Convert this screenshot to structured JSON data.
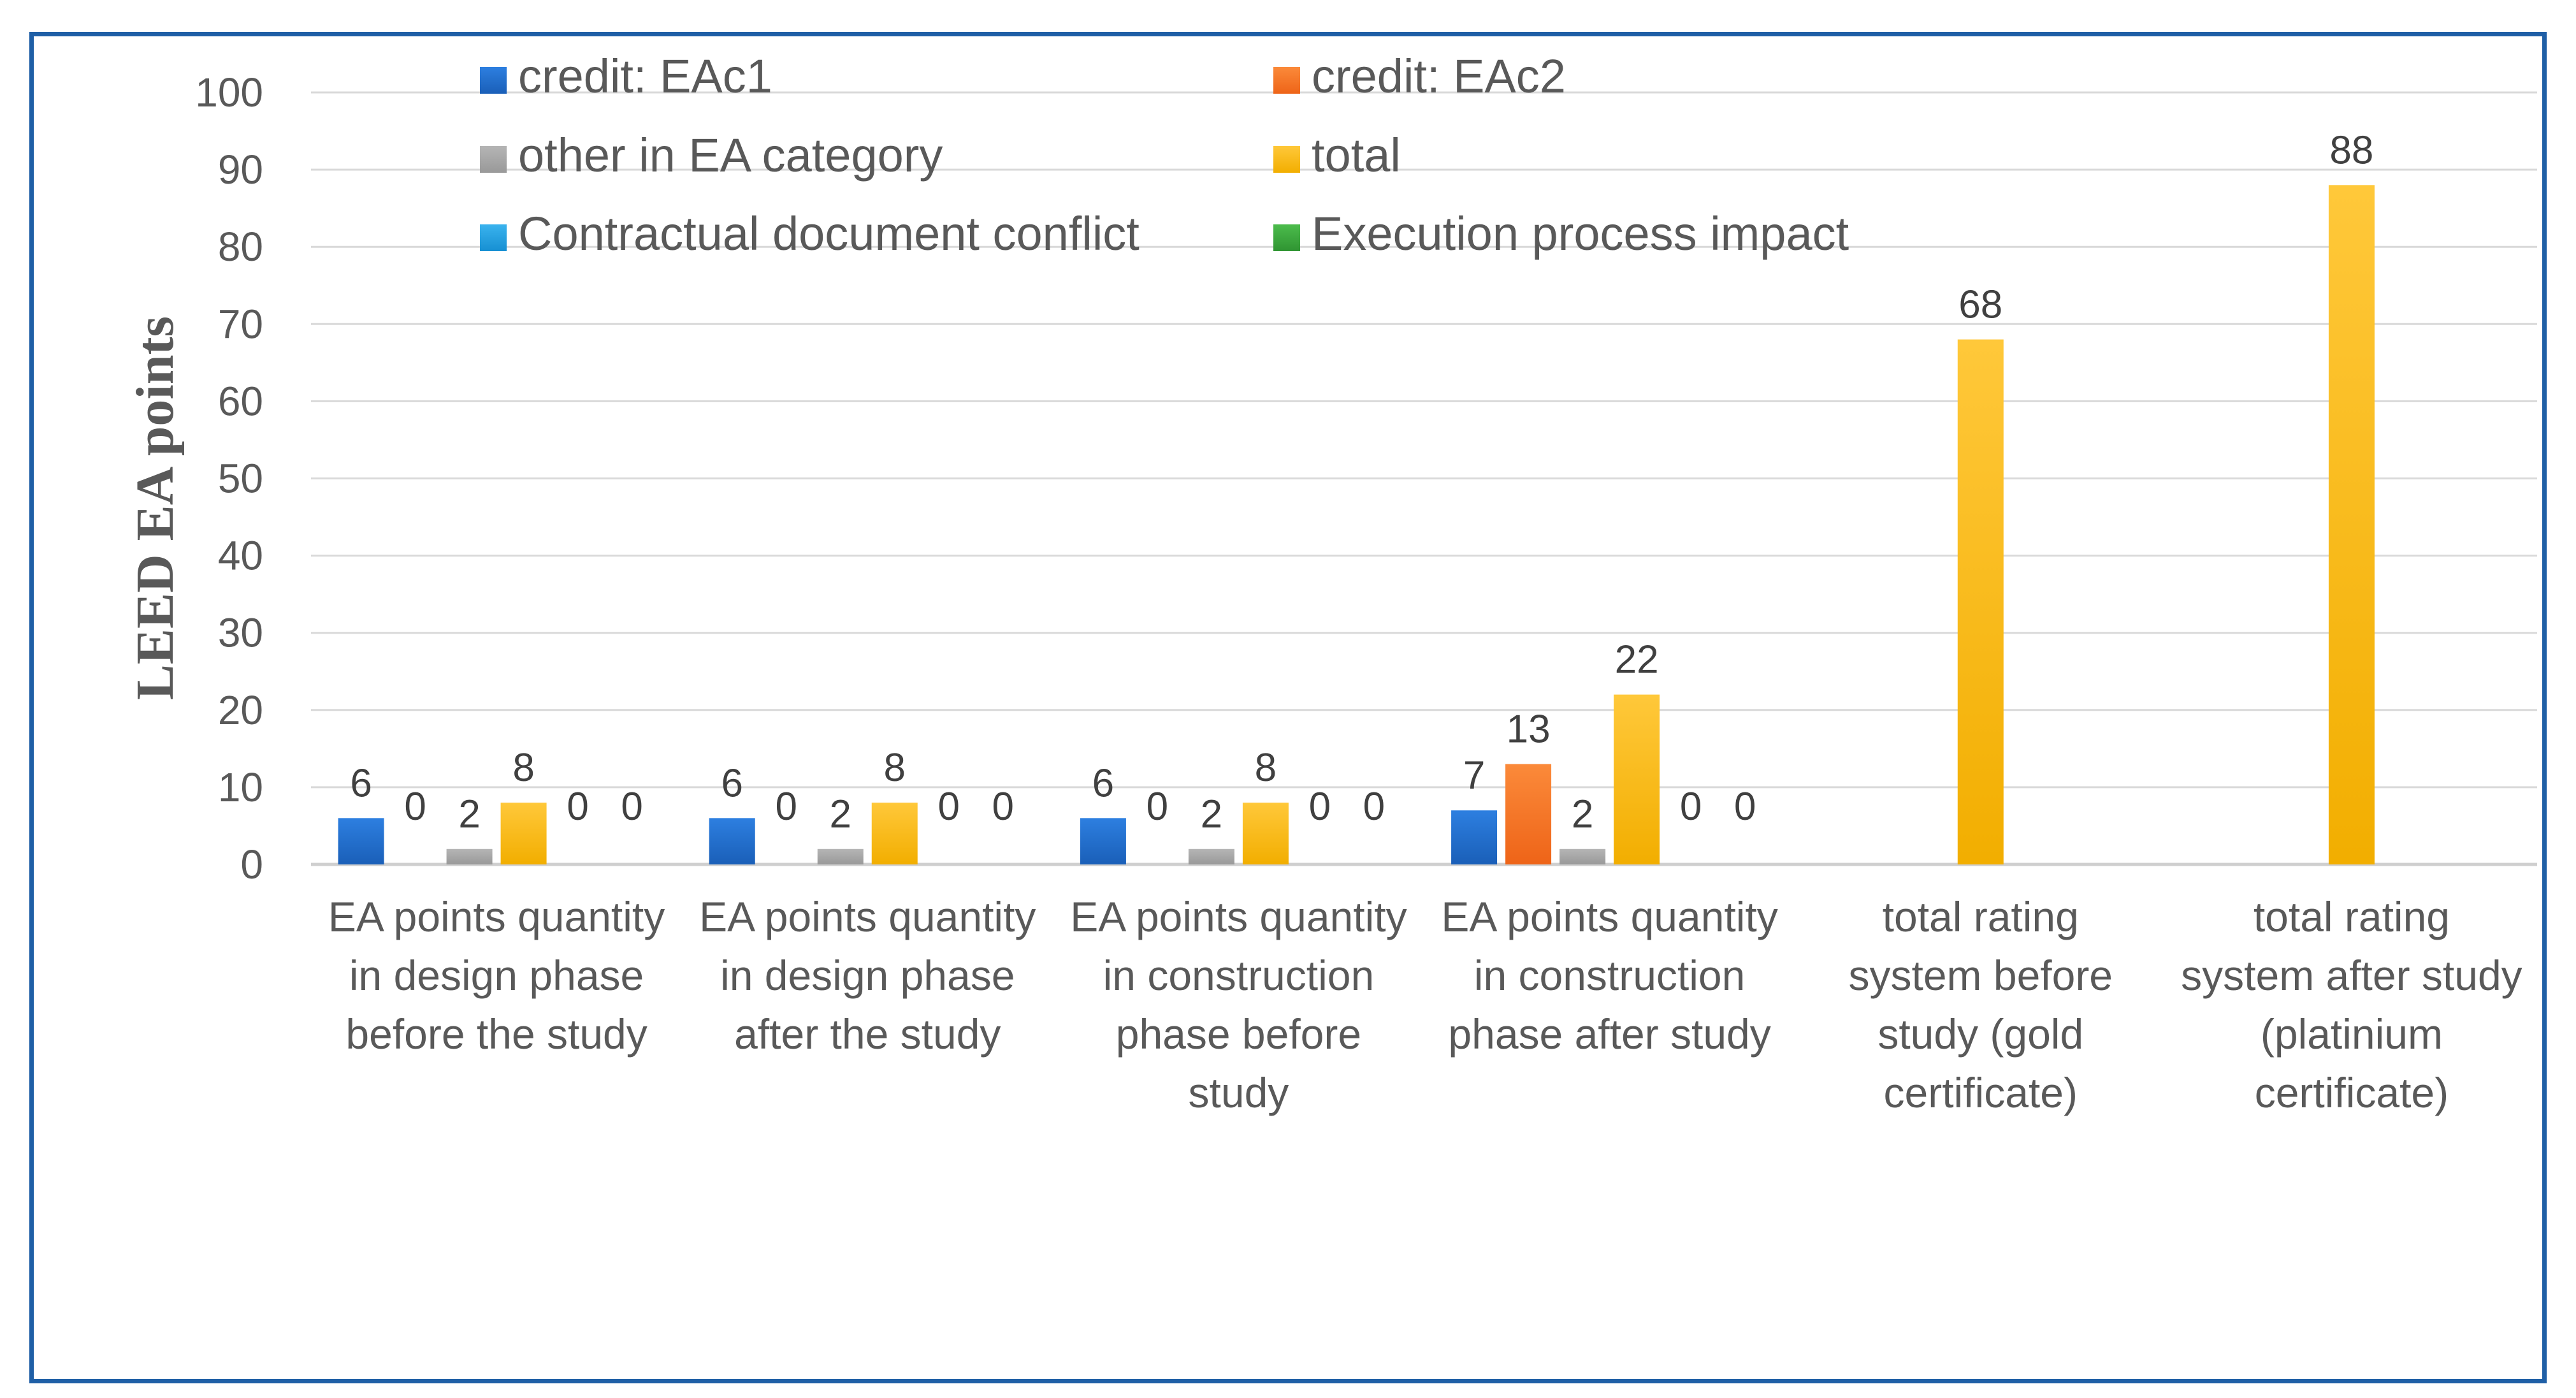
{
  "chart_data": {
    "type": "bar",
    "title": "",
    "xlabel": "",
    "ylabel": "LEED EA points",
    "ylim": [
      0,
      100
    ],
    "yticks": [
      "0",
      "10",
      "20",
      "30",
      "40",
      "50",
      "60",
      "70",
      "80",
      "90",
      "100"
    ],
    "grid": true,
    "legend_position": "top",
    "categories": [
      [
        "EA points quantity",
        "in design phase",
        "before the study"
      ],
      [
        "EA points quantity",
        "in design phase",
        "after  the study"
      ],
      [
        "EA points quantity",
        "in construction",
        "phase before",
        "study"
      ],
      [
        "EA points quantity",
        "in construction",
        "phase after study"
      ],
      [
        "total rating",
        "system before",
        "study (gold",
        "certificate)"
      ],
      [
        "total rating",
        "system after study",
        "(platinium",
        "certificate)"
      ]
    ],
    "series": [
      {
        "name": "credit: EAc1",
        "color": "#1f6fd1",
        "values": [
          6,
          6,
          6,
          7,
          null,
          null
        ],
        "labels": [
          "6",
          "6",
          "6",
          "7",
          "",
          ""
        ]
      },
      {
        "name": "credit: EAc2",
        "color": "#f4731f",
        "values": [
          0,
          0,
          0,
          13,
          null,
          null
        ],
        "labels": [
          "0",
          "0",
          "0",
          "13",
          "",
          ""
        ]
      },
      {
        "name": "other in EA category",
        "color": "#a5a5a5",
        "values": [
          2,
          2,
          2,
          2,
          null,
          null
        ],
        "labels": [
          "2",
          "2",
          "2",
          "2",
          "",
          ""
        ]
      },
      {
        "name": "total",
        "color": "#ffc000",
        "values": [
          8,
          8,
          8,
          22,
          68,
          88
        ],
        "labels": [
          "8",
          "8",
          "8",
          "22",
          "68",
          "88"
        ]
      },
      {
        "name": "Contractual document conflict",
        "color": "#1f9fe0",
        "values": [
          0,
          0,
          0,
          0,
          null,
          null
        ],
        "labels": [
          "0",
          "0",
          "0",
          "0",
          "",
          ""
        ]
      },
      {
        "name": "Execution process impact",
        "color": "#3aa63a",
        "values": [
          0,
          0,
          0,
          0,
          null,
          null
        ],
        "labels": [
          "0",
          "0",
          "0",
          "0",
          "",
          ""
        ]
      }
    ]
  }
}
